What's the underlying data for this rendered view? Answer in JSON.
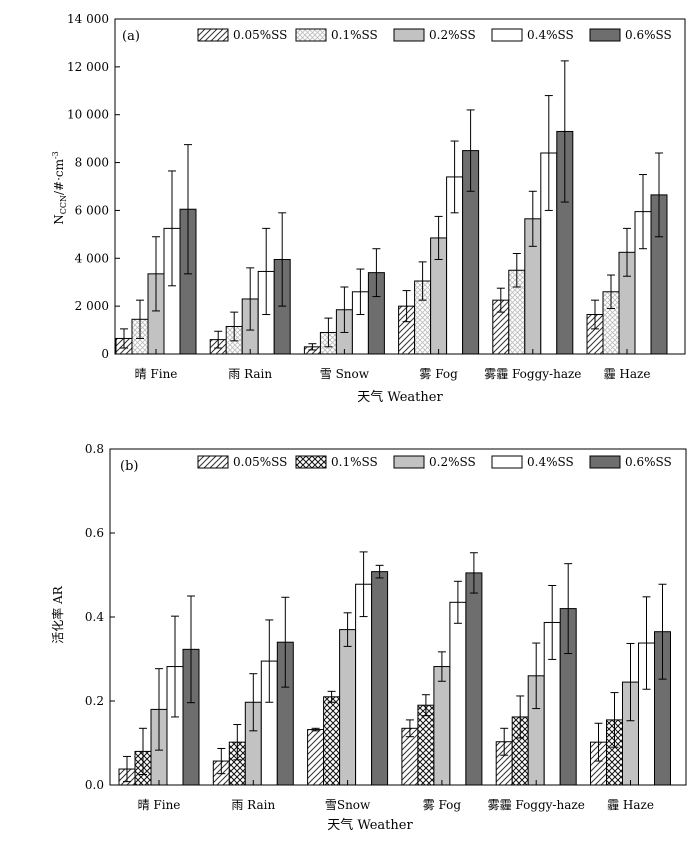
{
  "chart_data": [
    {
      "panel_label": "(a)",
      "type": "bar",
      "categories": [
        "晴 Fine",
        "雨 Rain",
        "雪 Snow",
        "雾 Fog",
        "雾霾 Foggy-haze",
        "霾 Haze"
      ],
      "xlabel": "天气 Weather",
      "ylabel": "NCCN/#·cm⁻³",
      "ylabel_main": "N",
      "ylabel_sub": "CCN",
      "ylabel_rest": "/#·cm",
      "ylabel_sup": "-3",
      "ylim": [
        0,
        14000
      ],
      "yticks": [
        0,
        2000,
        4000,
        6000,
        8000,
        10000,
        12000,
        14000
      ],
      "ytick_labels": [
        "0",
        "2 000",
        "4 000",
        "6 000",
        "8 000",
        "10 000",
        "12 000",
        "14 000"
      ],
      "legend_position": "top",
      "series": [
        {
          "name": "0.05%SS",
          "pattern": "diag",
          "values": [
            650,
            600,
            300,
            2000,
            2250,
            1650
          ],
          "errors": [
            400,
            350,
            130,
            650,
            500,
            600
          ]
        },
        {
          "name": "0.1%SS",
          "pattern": "lightcross",
          "values": [
            1450,
            1150,
            900,
            3050,
            3500,
            2600
          ],
          "errors": [
            800,
            600,
            600,
            800,
            700,
            700
          ]
        },
        {
          "name": "0.2%SS",
          "pattern": "lightgray",
          "values": [
            3350,
            2300,
            1850,
            4850,
            5650,
            4250
          ],
          "errors": [
            1550,
            1300,
            950,
            900,
            1150,
            1000
          ]
        },
        {
          "name": "0.4%SS",
          "pattern": "white",
          "values": [
            5250,
            3450,
            2600,
            7400,
            8400,
            5950
          ],
          "errors": [
            2400,
            1800,
            950,
            1500,
            2400,
            1550
          ]
        },
        {
          "name": "0.6%SS",
          "pattern": "darkgray",
          "values": [
            6050,
            3950,
            3400,
            8500,
            9300,
            6650
          ],
          "errors": [
            2700,
            1950,
            1000,
            1700,
            2950,
            1750
          ]
        }
      ]
    },
    {
      "panel_label": "(b)",
      "type": "bar",
      "categories": [
        "晴 Fine",
        "雨 Rain",
        "雪Snow",
        "雾 Fog",
        "雾霾 Foggy-haze",
        "霾 Haze"
      ],
      "xlabel": "天气 Weather",
      "ylabel": "活化率 AR",
      "ylim": [
        0,
        0.8
      ],
      "yticks": [
        0,
        0.2,
        0.4,
        0.6,
        0.8
      ],
      "ytick_labels": [
        "0.0",
        "0.2",
        "0.4",
        "0.6",
        "0.8"
      ],
      "legend_position": "top",
      "series": [
        {
          "name": "0.05%SS",
          "pattern": "diag",
          "values": [
            0.038,
            0.057,
            0.132,
            0.135,
            0.103,
            0.102
          ],
          "errors": [
            0.03,
            0.03,
            0.003,
            0.02,
            0.032,
            0.045
          ]
        },
        {
          "name": "0.1%SS",
          "pattern": "crosshatch",
          "values": [
            0.08,
            0.102,
            0.21,
            0.19,
            0.162,
            0.155
          ],
          "errors": [
            0.055,
            0.042,
            0.013,
            0.025,
            0.05,
            0.065
          ]
        },
        {
          "name": "0.2%SS",
          "pattern": "lightgray",
          "values": [
            0.18,
            0.197,
            0.37,
            0.282,
            0.26,
            0.245
          ],
          "errors": [
            0.097,
            0.068,
            0.04,
            0.035,
            0.078,
            0.092
          ]
        },
        {
          "name": "0.4%SS",
          "pattern": "white",
          "values": [
            0.282,
            0.295,
            0.478,
            0.435,
            0.387,
            0.338
          ],
          "errors": [
            0.12,
            0.098,
            0.077,
            0.05,
            0.088,
            0.11
          ]
        },
        {
          "name": "0.6%SS",
          "pattern": "darkgray",
          "values": [
            0.323,
            0.34,
            0.508,
            0.505,
            0.42,
            0.365
          ],
          "errors": [
            0.127,
            0.107,
            0.015,
            0.048,
            0.107,
            0.113
          ]
        }
      ]
    }
  ]
}
